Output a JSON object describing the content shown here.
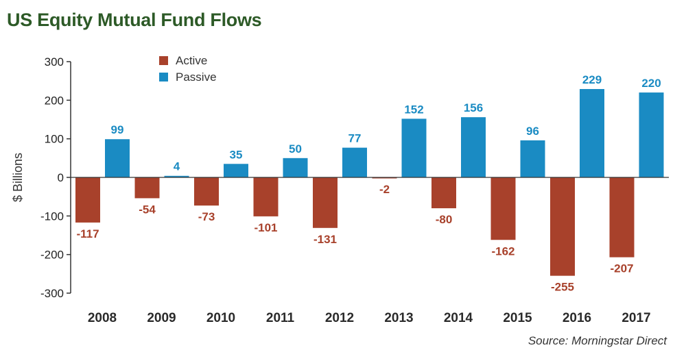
{
  "title": "US Equity Mutual Fund Flows",
  "source": "Source: Morningstar Direct",
  "chart_data": {
    "type": "bar",
    "title": "US Equity Mutual Fund Flows",
    "xlabel": "",
    "ylabel": "$ Billions",
    "ylim": [
      -300,
      300
    ],
    "yticks": [
      300,
      200,
      100,
      0,
      -100,
      -200,
      -300
    ],
    "grid": false,
    "legend_position": "top-left",
    "categories": [
      "2008",
      "2009",
      "2010",
      "2011",
      "2012",
      "2013",
      "2014",
      "2015",
      "2016",
      "2017"
    ],
    "series": [
      {
        "name": "Active",
        "color": "#a8412b",
        "label_color": "#a8412b",
        "values": [
          -117,
          -54,
          -73,
          -101,
          -131,
          -2,
          -80,
          -162,
          -255,
          -207
        ]
      },
      {
        "name": "Passive",
        "color": "#1a8bc3",
        "label_color": "#1a8bc3",
        "values": [
          99,
          4,
          35,
          50,
          77,
          152,
          156,
          96,
          229,
          220
        ]
      }
    ]
  }
}
